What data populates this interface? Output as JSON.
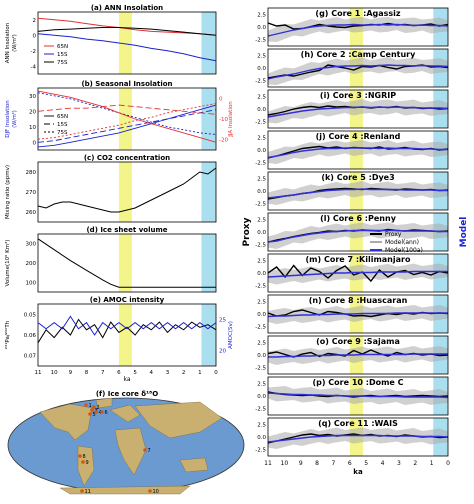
{
  "colors": {
    "red": "#e23030",
    "blue": "#1a22d0",
    "band_yellow": "#f3f58a",
    "band_cyan": "#aadff0",
    "proxy": "#000000",
    "model_ann": "#aaaaaa",
    "model_100a": "#3030dd",
    "map_ocean": "#6a9ad0",
    "map_land": "#c9b070"
  },
  "shared": {
    "ka_ticks": [
      "11",
      "10",
      "9",
      "8",
      "7",
      "6",
      "5",
      "4",
      "3",
      "2",
      "1",
      "0"
    ],
    "ka_label": "ka",
    "band_yellow_ka": [
      6,
      5.2
    ],
    "band_cyan_ka": [
      0.9,
      0
    ]
  },
  "left_panels": {
    "a": {
      "title": "(a) ANN Insolation",
      "ylabel": "ANN Insolation",
      "yunit": "(W/m²)",
      "yticks": [
        "2",
        "0",
        "-2",
        "-4"
      ],
      "legend": [
        "65N",
        "15S",
        "75S"
      ],
      "chart_data": {
        "type": "line",
        "x": [
          11,
          10,
          9,
          8,
          7,
          6,
          5,
          4,
          3,
          2,
          1,
          0
        ],
        "ylim": [
          -5,
          3
        ],
        "series": [
          {
            "name": "65N",
            "color": "red",
            "values": [
              2.2,
              2.0,
              1.8,
              1.5,
              1.2,
              1.0,
              0.7,
              0.5,
              0.4,
              0.3,
              0.2,
              0.0
            ]
          },
          {
            "name": "15S",
            "color": "blue",
            "values": [
              0.2,
              0.0,
              -0.2,
              -0.5,
              -0.7,
              -1.0,
              -1.3,
              -1.7,
              -2.0,
              -2.4,
              -2.9,
              -3.3
            ]
          },
          {
            "name": "75S",
            "color": "black",
            "values": [
              0.5,
              0.7,
              0.8,
              0.9,
              1.0,
              1.0,
              0.9,
              0.8,
              0.6,
              0.4,
              0.2,
              0.0
            ]
          }
        ]
      }
    },
    "b": {
      "title": "(b) Seasonal Insolation",
      "ylabel": "DJF Insolation",
      "yunit": "(W/m²)",
      "yticks": [
        "30",
        "20",
        "10",
        "0"
      ],
      "ylabel_right": "JJA Insolation",
      "yticks_right": [
        "0",
        "-10",
        "-20"
      ],
      "legend": [
        "65N",
        "15S",
        "75S"
      ],
      "chart_data": {
        "type": "line",
        "x": [
          11,
          10,
          9,
          8,
          7,
          6,
          5,
          4,
          3,
          2,
          1,
          0
        ],
        "ylim": [
          -5,
          35
        ],
        "series": [
          {
            "name": "65N DJF",
            "color": "blue",
            "dash": false,
            "values": [
              -3,
              -2,
              0,
              2,
              4,
              6,
              9,
              12,
              15,
              18,
              21,
              24
            ]
          },
          {
            "name": "15S DJF",
            "color": "blue",
            "dash": "6,3",
            "values": [
              0,
              1,
              3,
              5,
              7,
              9,
              11,
              13,
              15,
              17,
              19,
              21
            ]
          },
          {
            "name": "75S DJF",
            "color": "blue",
            "dash": "2,2",
            "values": [
              32,
              30,
              28,
              25,
              22,
              19,
              16,
              13,
              10,
              8,
              6,
              5
            ]
          },
          {
            "name": "65N JJA",
            "color": "red",
            "dash": false,
            "values": [
              33,
              31,
              29,
              26,
              23,
              19,
              15,
              12,
              9,
              6,
              3,
              0
            ]
          },
          {
            "name": "15S JJA",
            "color": "red",
            "dash": "6,3",
            "values": [
              20,
              21,
              22,
              22,
              23,
              24,
              23,
              22,
              21,
              20,
              19,
              18
            ]
          },
          {
            "name": "75S JJA",
            "color": "red",
            "dash": "2,2",
            "values": [
              2,
              3,
              5,
              7,
              9,
              11,
              14,
              16,
              19,
              21,
              23,
              25
            ]
          }
        ]
      }
    },
    "c": {
      "title": "(c) CO2 concentration",
      "ylabel": "Mixing ratio (ppmv)",
      "yticks": [
        "280",
        "270",
        "260"
      ],
      "chart_data": {
        "type": "line",
        "x": [
          11,
          10.5,
          10,
          9.5,
          9,
          8.5,
          8,
          7.5,
          7,
          6.5,
          6,
          5.5,
          5,
          4.5,
          4,
          3.5,
          3,
          2.5,
          2,
          1.5,
          1,
          0.5,
          0
        ],
        "ylim": [
          255,
          285
        ],
        "series": [
          {
            "name": "CO2",
            "color": "black",
            "values": [
              263,
              262,
              264,
              265,
              265,
              264,
              263,
              262,
              261,
              260,
              260,
              261,
              262,
              264,
              266,
              268,
              270,
              272,
              274,
              277,
              280,
              279,
              282
            ]
          }
        ]
      }
    },
    "d": {
      "title": "(d) Ice sheet volume",
      "ylabel": "Volume(10⁶ Km³)",
      "yticks": [
        "300",
        "200",
        "100"
      ],
      "chart_data": {
        "type": "line",
        "x": [
          11,
          10,
          9,
          8,
          7,
          6.5,
          6,
          5,
          4,
          3,
          2,
          1,
          0
        ],
        "ylim": [
          80,
          320
        ],
        "series": [
          {
            "name": "Ice volume",
            "color": "black",
            "values": [
              300,
              255,
              210,
              170,
              130,
              112,
              100,
              100,
              100,
              100,
              100,
              100,
              100
            ]
          }
        ]
      }
    },
    "e": {
      "title": "(e) AMOC intensity",
      "ylabel": "²³¹Pa/²³⁰Th",
      "yticks": [
        "0.05",
        "0.06",
        "0.07"
      ],
      "ylabel_right": "AMOC(Sv)",
      "yticks_right": [
        "25",
        "20"
      ],
      "chart_data": {
        "type": "line",
        "x": [
          11,
          10.5,
          10,
          9.5,
          9,
          8.5,
          8,
          7.5,
          7,
          6.5,
          6,
          5.5,
          5,
          4.5,
          4,
          3.5,
          3,
          2.5,
          2,
          1.5,
          1,
          0.5,
          0
        ],
        "series": [
          {
            "name": "Proxy",
            "color": "black",
            "ylim": [
              0.072,
              0.048
            ],
            "values": [
              0.063,
              0.058,
              0.061,
              0.057,
              0.06,
              0.054,
              0.058,
              0.056,
              0.061,
              0.055,
              0.059,
              0.057,
              0.06,
              0.056,
              0.058,
              0.055,
              0.059,
              0.056,
              0.058,
              0.055,
              0.057,
              0.056,
              0.058
            ]
          },
          {
            "name": "Model",
            "color": "blue",
            "ylim": [
              18,
              28
            ],
            "values": [
              25,
              24,
              25,
              24,
              26,
              24,
              25,
              23,
              25,
              24,
              25,
              24,
              25,
              24,
              25,
              24,
              25,
              24,
              25,
              24,
              25,
              24,
              25
            ]
          }
        ]
      }
    },
    "f": {
      "title": "(f) Ice core δ¹⁸O",
      "sites": [
        "1",
        "2",
        "3",
        "4",
        "5",
        "6",
        "7",
        "8",
        "9",
        "10",
        "11"
      ]
    }
  },
  "right": {
    "ylabel_left": "Proxy",
    "ylabel_right": "Model",
    "legend": {
      "proxy": "Proxy",
      "ann": "Model(ann)",
      "a100": "Model(100a)"
    },
    "yticks": [
      "2.5",
      "0.0",
      "-2.5"
    ],
    "cores": [
      {
        "title": "(g) Core 1 :Agassiz",
        "proxy": [
          0.8,
          0.2,
          0.4,
          -0.4,
          -0.3,
          0.1,
          0.5,
          0.2,
          0,
          -0.1,
          0.2,
          0.3,
          0.5,
          0.4,
          0.7,
          0.4,
          0.5,
          0.3,
          0.4,
          0.6,
          0.2,
          0.5
        ],
        "model": [
          -1.8,
          -1.4,
          -1.0,
          -0.6,
          -0.3,
          0,
          0.2,
          0.3,
          0.4,
          0.4,
          0.5,
          0.4,
          0.4,
          0.5,
          0.4,
          0.5,
          0.4,
          0.3,
          0.4,
          0.3,
          0.3,
          0.2
        ]
      },
      {
        "title": "(h) Core 2 :Camp Century",
        "proxy": [
          -2,
          -1.7,
          -1.4,
          -1.6,
          -1.2,
          -0.8,
          -0.5,
          0.6,
          0.3,
          0,
          -0.4,
          0.3,
          0.2,
          0.5,
          0.1,
          -0.2,
          0.3,
          0.4,
          0.6,
          0.2,
          0.3,
          0.1
        ],
        "model": [
          -2.2,
          -1.8,
          -1.5,
          -1.2,
          -0.8,
          -0.4,
          -0.1,
          0.1,
          0.3,
          0.4,
          0.4,
          0.5,
          0.4,
          0.5,
          0.6,
          0.5,
          0.5,
          0.4,
          0.5,
          0.4,
          0.4,
          0.3
        ]
      },
      {
        "title": "(i) Core 3 :NGRIP",
        "proxy": [
          -1.2,
          -0.9,
          -0.5,
          0,
          0.3,
          0.5,
          0.3,
          0.6,
          0.4,
          0.5,
          0.3,
          0.4,
          0.2,
          0.4,
          0.3,
          0.5,
          0.2,
          0.3,
          0.1,
          0.2,
          0,
          0.1
        ],
        "model": [
          -1.6,
          -1.3,
          -1.0,
          -0.7,
          -0.4,
          -0.2,
          0,
          0.1,
          0.2,
          0.3,
          0.3,
          0.4,
          0.3,
          0.4,
          0.3,
          0.4,
          0.3,
          0.3,
          0.2,
          0.2,
          0.2,
          0.1
        ]
      },
      {
        "title": "(j) Core 4 :Renland",
        "proxy": [
          -1.6,
          -1.2,
          -0.7,
          -0.2,
          0.3,
          0.5,
          0.7,
          0.4,
          0.6,
          0.3,
          0.5,
          0.4,
          0.3,
          0.6,
          0.2,
          0.3,
          0.5,
          0.2,
          0.1,
          0.3,
          0,
          0.2
        ],
        "model": [
          -1.5,
          -1.2,
          -0.9,
          -0.5,
          -0.2,
          0,
          0.2,
          0.3,
          0.3,
          0.4,
          0.4,
          0.4,
          0.4,
          0.3,
          0.4,
          0.3,
          0.3,
          0.3,
          0.2,
          0.2,
          0.1,
          0.1
        ]
      },
      {
        "title": "(k) Core 5 :Dye3",
        "proxy": [
          -1.6,
          -1.3,
          -1.0,
          -0.8,
          -0.5,
          -0.3,
          0.1,
          0.3,
          0.4,
          0.5,
          0.4,
          0.3,
          0.5,
          0.4,
          0.3,
          0.2,
          0.4,
          0.3,
          0.2,
          0.3,
          0.1,
          0.2
        ],
        "model": [
          -1.4,
          -1.2,
          -1.0,
          -0.8,
          -0.5,
          -0.3,
          -0.1,
          0.1,
          0.2,
          0.3,
          0.3,
          0.4,
          0.3,
          0.3,
          0.3,
          0.3,
          0.2,
          0.2,
          0.2,
          0.2,
          0.1,
          0.1
        ]
      },
      {
        "title": "(l) Core 6 :Penny",
        "proxy": [
          -2.0,
          -1.6,
          -1.3,
          -0.9,
          -0.6,
          -0.3,
          -0.1,
          0.2,
          0.1,
          0.3,
          0.2,
          0.4,
          0.3,
          0.2,
          0.5,
          0.3,
          0.2,
          0.4,
          0.3,
          0.2,
          0.1,
          0.2
        ],
        "model": [
          -2.0,
          -1.8,
          -1.4,
          -1.0,
          -0.7,
          -0.4,
          -0.2,
          0,
          0.1,
          0.2,
          0.3,
          0.3,
          0.3,
          0.3,
          0.3,
          0.3,
          0.2,
          0.2,
          0.2,
          0.2,
          0.1,
          0.1
        ]
      },
      {
        "title": "(m) Core 7 :Kilimanjaro",
        "proxy": [
          0,
          1.2,
          -0.8,
          1.5,
          -0.5,
          1.0,
          0.3,
          -1.0,
          0.5,
          1.4,
          -0.4,
          0.2,
          -1.6,
          0.6,
          -0.8,
          0.2,
          0.5,
          -0.3,
          0.1,
          -0.4,
          0.3,
          0
        ],
        "model": [
          -0.8,
          -0.7,
          -0.6,
          -0.5,
          -0.4,
          -0.3,
          -0.2,
          -0.1,
          0,
          0,
          0.1,
          0.1,
          0.1,
          0.2,
          0.2,
          0.2,
          0.2,
          0.3,
          0.3,
          0.3,
          0.3,
          0.3
        ]
      },
      {
        "title": "(n) Core 8 :Huascaran",
        "proxy": [
          0.2,
          -0.4,
          -0.2,
          0.5,
          0.8,
          0.3,
          -0.2,
          0.5,
          0.3,
          0,
          -0.4,
          -0.3,
          -0.5,
          -0.2,
          0.1,
          -0.1,
          0.2,
          0,
          0.3,
          0.1,
          0.2,
          0.1
        ],
        "model": [
          -0.5,
          -0.4,
          -0.4,
          -0.3,
          -0.2,
          -0.2,
          -0.1,
          -0.1,
          0,
          0,
          0,
          0.1,
          0.1,
          0.1,
          0.1,
          0.2,
          0.2,
          0.2,
          0.2,
          0.2,
          0.2,
          0.2
        ]
      },
      {
        "title": "(o) Core 9 :Sajama",
        "proxy": [
          0.3,
          0.6,
          0.1,
          -0.4,
          0.2,
          0.5,
          -0.3,
          0.3,
          0.1,
          -0.2,
          0.9,
          0.2,
          1.0,
          0.3,
          -0.2,
          0.5,
          0.1,
          0.3,
          0,
          0.2,
          -0.1,
          0
        ],
        "model": [
          -0.4,
          -0.4,
          -0.3,
          -0.3,
          -0.2,
          -0.2,
          -0.1,
          -0.1,
          0,
          0,
          0,
          0.1,
          0.1,
          0.1,
          0.1,
          0.1,
          0.1,
          0.2,
          0.2,
          0.2,
          0.2,
          0.2
        ]
      },
      {
        "title": "(p) Core 10 :Dome C",
        "proxy": [
          0.8,
          0.5,
          0.3,
          0.2,
          0.1,
          0.2,
          0,
          -0.1,
          0.1,
          0,
          -0.2,
          0,
          0.1,
          -0.1,
          0,
          0.1,
          -0.1,
          0,
          0.1,
          0,
          -0.1,
          0
        ],
        "model": [
          0.6,
          0.5,
          0.4,
          0.3,
          0.3,
          0.2,
          0.2,
          0.1,
          0.1,
          0,
          0,
          0,
          -0.1,
          -0.1,
          -0.1,
          -0.1,
          -0.2,
          -0.2,
          -0.2,
          -0.2,
          -0.2,
          -0.3
        ]
      },
      {
        "title": "(q) Core 11 :WAIS",
        "proxy": [
          -1.2,
          -0.8,
          -0.4,
          0,
          0.4,
          0.6,
          0.3,
          0.5,
          0.2,
          0.4,
          0.6,
          0.3,
          0.5,
          0.2,
          0.3,
          0.1,
          0.4,
          0.2,
          0,
          0.1,
          -0.1,
          0
        ],
        "model": [
          -1.0,
          -0.8,
          -0.6,
          -0.4,
          -0.2,
          0,
          0.1,
          0.2,
          0.3,
          0.3,
          0.3,
          0.3,
          0.3,
          0.3,
          0.2,
          0.2,
          0.2,
          0.2,
          0.1,
          0.1,
          0.1,
          0
        ]
      }
    ]
  }
}
